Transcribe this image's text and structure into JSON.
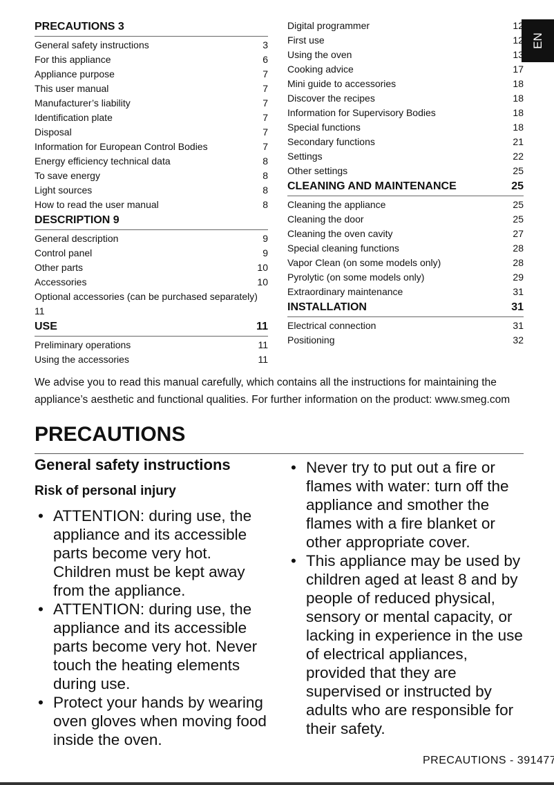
{
  "toc": {
    "left": [
      {
        "title": "PRECAUTIONS 3",
        "page": "",
        "items": [
          {
            "label": "General safety instructions",
            "page": "3"
          },
          {
            "label": "For this appliance",
            "page": "6"
          },
          {
            "label": "Appliance purpose",
            "page": "7"
          },
          {
            "label": "This user manual",
            "page": "7"
          },
          {
            "label": "Manufacturer’s liability",
            "page": "7"
          },
          {
            "label": "Identification plate",
            "page": "7"
          },
          {
            "label": "Disposal",
            "page": "7"
          },
          {
            "label": "Information for European Control Bodies",
            "page": "7"
          },
          {
            "label": "Energy efficiency technical data",
            "page": "8"
          },
          {
            "label": "To save energy",
            "page": "8"
          },
          {
            "label": "Light sources",
            "page": "8"
          },
          {
            "label": "How to read the user manual",
            "page": "8"
          }
        ]
      },
      {
        "title": "DESCRIPTION 9",
        "page": "",
        "items": [
          {
            "label": "General description",
            "page": "9"
          },
          {
            "label": "Control panel",
            "page": "9"
          },
          {
            "label": "Other parts",
            "page": "10"
          },
          {
            "label": "Accessories",
            "page": "10"
          },
          {
            "label": "Optional accessories (can be purchased separately)",
            "page": "11",
            "wrap": true
          }
        ]
      },
      {
        "title": "USE",
        "page": "11",
        "items": [
          {
            "label": "Preliminary operations",
            "page": "11"
          },
          {
            "label": "Using the accessories",
            "page": "11"
          }
        ]
      }
    ],
    "right": [
      {
        "title": "",
        "page": "",
        "items": [
          {
            "label": "Digital programmer",
            "page": "12"
          },
          {
            "label": "First use",
            "page": "12"
          },
          {
            "label": "Using the oven",
            "page": "13"
          },
          {
            "label": "Cooking advice",
            "page": "17"
          },
          {
            "label": "Mini guide to accessories",
            "page": "18"
          },
          {
            "label": "Discover the recipes",
            "page": "18"
          },
          {
            "label": "Information for Supervisory Bodies",
            "page": "18"
          },
          {
            "label": "Special functions",
            "page": "18"
          },
          {
            "label": "Secondary functions",
            "page": "21"
          },
          {
            "label": "Settings",
            "page": "22"
          },
          {
            "label": "Other settings",
            "page": "25"
          }
        ]
      },
      {
        "title": "CLEANING AND MAINTENANCE",
        "page": "25",
        "items": [
          {
            "label": "Cleaning the appliance",
            "page": "25"
          },
          {
            "label": "Cleaning the door",
            "page": "25"
          },
          {
            "label": "Cleaning the oven cavity",
            "page": "27"
          },
          {
            "label": "Special cleaning functions",
            "page": "28"
          },
          {
            "label": "Vapor Clean (on some models only)",
            "page": "28"
          },
          {
            "label": "Pyrolytic (on some models only)",
            "page": "29"
          },
          {
            "label": "Extraordinary maintenance",
            "page": "31"
          }
        ]
      },
      {
        "title": "INSTALLATION",
        "page": "31",
        "items": [
          {
            "label": "Electrical connection",
            "page": "31"
          },
          {
            "label": "Positioning",
            "page": "32"
          }
        ]
      }
    ]
  },
  "language_tab": "EN",
  "intro": "We advise you to read this manual carefully, which contains all the instructions for maintaining the appliance’s aesthetic and functional qualities. For further information on the product: www.smeg.com",
  "section_title": "PRECAUTIONS",
  "subsection_title": "General safety instructions",
  "subheading": "Risk of personal injury",
  "bullets_left": [
    "ATTENTION: during use, the appliance and its accessible parts become very hot. Children must be kept away from the appliance.",
    "ATTENTION: during use, the appliance and its accessible parts become very hot. Never touch the heating elements during use.",
    "Protect your hands by wearing oven gloves when moving food inside the oven."
  ],
  "bullets_right": [
    "Never try to put out a fire or flames with water: turn off the appliance and smother the flames with a fire blanket or other appropriate cover.",
    "This appliance may be used by children aged at least 8 and by people of reduced physical, sensory or mental capacity, or lacking in experience in the use of electrical appliances, provided that they are supervised or instructed by adults who are responsible for their safety."
  ],
  "footer": "PRECAUTIONS  -  391477"
}
